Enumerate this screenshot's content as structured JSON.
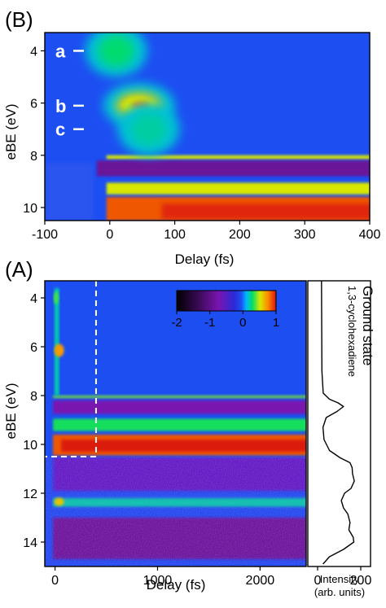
{
  "chart_data": [
    {
      "panel": "(B)",
      "type": "heatmap",
      "xlabel": "Delay (fs)",
      "ylabel": "eBE (eV)",
      "xlim": [
        -100,
        400
      ],
      "ylim": [
        10.5,
        3.3
      ],
      "xticks": [
        -100,
        0,
        100,
        200,
        300,
        400
      ],
      "yticks": [
        4,
        6,
        8,
        10
      ],
      "annotations": [
        {
          "label": "a",
          "y": 4.0
        },
        {
          "label": "b",
          "y": 6.1
        },
        {
          "label": "c",
          "y": 7.0
        }
      ],
      "features": [
        {
          "delay": 10,
          "ebe": 4.0,
          "intensity": 0.45
        },
        {
          "delay": 45,
          "ebe": 6.1,
          "intensity": 0.95
        },
        {
          "delay": 60,
          "ebe": 7.0,
          "intensity": 0.35
        }
      ],
      "bands": [
        {
          "ebe_range": [
            8.0,
            8.15
          ],
          "sign": "positive",
          "level": 0.5
        },
        {
          "ebe_range": [
            8.2,
            8.8
          ],
          "sign": "negative",
          "level": -1.3
        },
        {
          "ebe_range": [
            9.05,
            9.5
          ],
          "sign": "positive",
          "level": 0.5
        },
        {
          "ebe_range": [
            9.6,
            10.5
          ],
          "sign": "positive",
          "level": 0.85
        }
      ]
    },
    {
      "panel": "(A)",
      "type": "heatmap",
      "xlabel": "Delay (fs)",
      "ylabel": "eBE (eV)",
      "xlim": [
        -100,
        2450
      ],
      "ylim": [
        15,
        3.3
      ],
      "xticks": [
        0,
        1000,
        2000
      ],
      "yticks": [
        4,
        6,
        8,
        10,
        12,
        14
      ],
      "colorbar": {
        "ticks": [
          -2,
          -1,
          0,
          1
        ],
        "range": [
          -2,
          1
        ]
      },
      "dashed_box": {
        "delay_max": 400,
        "ebe_max": 10.5
      },
      "bands": [
        {
          "ebe_range": [
            8.0,
            8.1
          ],
          "level": 0.4
        },
        {
          "ebe_range": [
            8.2,
            8.75
          ],
          "level": -1.2
        },
        {
          "ebe_range": [
            8.95,
            9.45
          ],
          "level": 0.3
        },
        {
          "ebe_range": [
            9.6,
            10.45
          ],
          "level": 0.85
        },
        {
          "ebe_range": [
            10.55,
            11.9
          ],
          "level": -1.0
        },
        {
          "ebe_range": [
            12.2,
            12.55
          ],
          "level": 0.2
        },
        {
          "ebe_range": [
            13.0,
            14.7
          ],
          "level": -1.3
        }
      ]
    },
    {
      "panel": "ground-state",
      "type": "line",
      "title_lines": [
        "Ground state",
        "1,3-cyclohexadiene"
      ],
      "xlabel_lines": [
        "Intensity",
        "(arb. units)"
      ],
      "xlim": [
        0,
        200
      ],
      "xticks": [
        0,
        200
      ],
      "ylim": [
        15,
        3.3
      ],
      "points": [
        [
          3.3,
          18
        ],
        [
          7.0,
          20
        ],
        [
          7.9,
          26
        ],
        [
          8.15,
          55
        ],
        [
          8.3,
          95
        ],
        [
          8.45,
          120
        ],
        [
          8.65,
          90
        ],
        [
          8.9,
          40
        ],
        [
          9.3,
          25
        ],
        [
          9.8,
          30
        ],
        [
          10.25,
          55
        ],
        [
          10.55,
          105
        ],
        [
          10.75,
          150
        ],
        [
          10.95,
          160
        ],
        [
          11.2,
          162
        ],
        [
          11.5,
          170
        ],
        [
          11.8,
          155
        ],
        [
          12.0,
          125
        ],
        [
          12.3,
          110
        ],
        [
          12.6,
          120
        ],
        [
          12.85,
          140
        ],
        [
          13.2,
          150
        ],
        [
          13.5,
          145
        ],
        [
          13.8,
          165
        ],
        [
          14.0,
          168
        ],
        [
          14.3,
          120
        ],
        [
          14.6,
          55
        ],
        [
          14.9,
          25
        ]
      ]
    }
  ]
}
